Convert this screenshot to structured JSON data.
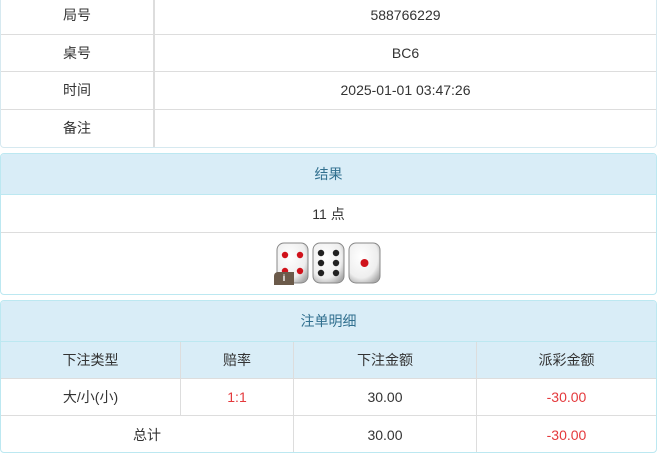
{
  "info": [
    {
      "label": "局号",
      "value": "588766229"
    },
    {
      "label": "桌号",
      "value": "BC6"
    },
    {
      "label": "时间",
      "value": "2025-01-01 03:47:26"
    },
    {
      "label": "备注",
      "value": ""
    }
  ],
  "result": {
    "title": "结果",
    "points": "11 点",
    "dice": [
      4,
      6,
      1
    ],
    "badge": "i"
  },
  "bets": {
    "title": "注单明细",
    "headers": [
      "下注类型",
      "赔率",
      "下注金额",
      "派彩金额"
    ],
    "rows": [
      {
        "type": "大/小(小)",
        "odds": "1:1",
        "amount": "30.00",
        "payout": "-30.00"
      }
    ],
    "total": {
      "label": "总计",
      "amount": "30.00",
      "payout": "-30.00"
    }
  },
  "colors": {
    "header_bg": "#d9edf7",
    "header_text": "#31708f",
    "negative": "#e4393c"
  }
}
